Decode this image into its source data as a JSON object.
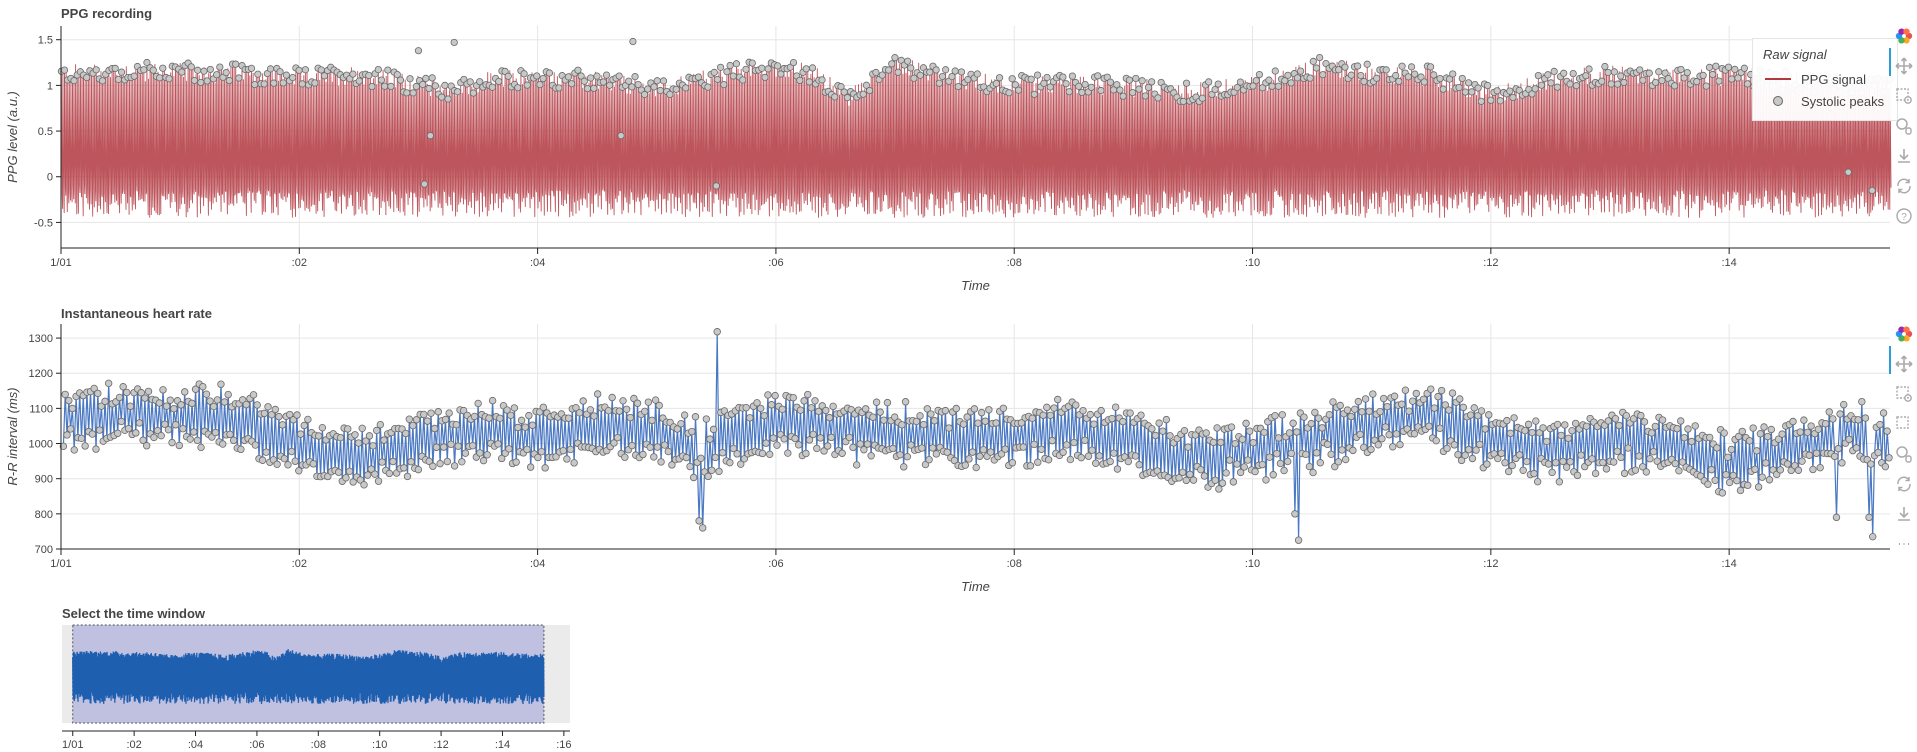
{
  "colors": {
    "ppg_line": "#b2373f",
    "peak_fill": "#c8c8c8",
    "hr_line": "#4a78c2",
    "nav_signal": "#1f5fb0",
    "nav_window": "#c0c0e0",
    "tool_active": "#2c9ed7"
  },
  "ppg_panel": {
    "title": "PPG recording",
    "legend": {
      "title": "Raw signal",
      "items": [
        {
          "label": "PPG signal",
          "kind": "line"
        },
        {
          "label": "Systolic peaks",
          "kind": "marker"
        }
      ]
    },
    "toolbar_icons": [
      "bokeh-logo-icon",
      "pan-icon",
      "box-zoom-icon",
      "wheel-zoom-icon",
      "save-icon",
      "reset-icon",
      "help-icon"
    ]
  },
  "hr_panel": {
    "title": "Instantaneous heart rate",
    "toolbar_icons": [
      "bokeh-logo-icon",
      "pan-icon",
      "box-zoom-icon",
      "box-select-icon",
      "wheel-zoom-icon",
      "reset-icon",
      "save-icon",
      "more-icon"
    ]
  },
  "nav_panel": {
    "title": "Select the time window"
  },
  "chart_data": [
    {
      "type": "line",
      "title": "PPG recording",
      "xlabel": "Time",
      "ylabel": "PPG level (a.u.)",
      "xlim": [
        0,
        15.35
      ],
      "ylim": [
        -0.78,
        1.65
      ],
      "x_ticks": [
        {
          "v": 0,
          "label": "1/01"
        },
        {
          "v": 2,
          "label": ":02"
        },
        {
          "v": 4,
          "label": ":04"
        },
        {
          "v": 6,
          "label": ":06"
        },
        {
          "v": 8,
          "label": ":08"
        },
        {
          "v": 10,
          "label": ":10"
        },
        {
          "v": 12,
          "label": ":12"
        },
        {
          "v": 14,
          "label": ":14"
        }
      ],
      "y_ticks": [
        -0.5,
        0,
        0.5,
        1,
        1.5
      ],
      "grid": true,
      "legend_position": "top-right",
      "series": [
        {
          "name": "PPG signal",
          "kind": "line"
        },
        {
          "name": "Systolic peaks",
          "kind": "scatter",
          "envelope": [
            [
              0,
              1.12
            ],
            [
              0.5,
              1.15
            ],
            [
              1,
              1.14
            ],
            [
              1.5,
              1.13
            ],
            [
              2,
              1.08
            ],
            [
              2.5,
              1.12
            ],
            [
              3,
              1.0
            ],
            [
              3.3,
              0.95
            ],
            [
              3.6,
              1.05
            ],
            [
              4,
              1.08
            ],
            [
              4.5,
              1.05
            ],
            [
              5,
              0.95
            ],
            [
              5.5,
              1.1
            ],
            [
              6,
              1.2
            ],
            [
              6.3,
              1.12
            ],
            [
              6.6,
              0.85
            ],
            [
              7,
              1.25
            ],
            [
              7.5,
              1.05
            ],
            [
              8,
              1.0
            ],
            [
              8.5,
              1.02
            ],
            [
              9,
              0.98
            ],
            [
              9.5,
              0.92
            ],
            [
              10,
              1.0
            ],
            [
              10.6,
              1.22
            ],
            [
              11,
              1.12
            ],
            [
              11.5,
              1.1
            ],
            [
              12,
              0.88
            ],
            [
              12.5,
              1.05
            ],
            [
              13,
              1.12
            ],
            [
              13.5,
              1.1
            ],
            [
              14,
              1.1
            ],
            [
              14.5,
              1.05
            ],
            [
              15,
              1.0
            ],
            [
              15.35,
              1.02
            ]
          ]
        }
      ]
    },
    {
      "type": "line",
      "title": "Instantaneous heart rate",
      "xlabel": "Time",
      "ylabel": "R-R interval (ms)",
      "xlim": [
        0,
        15.35
      ],
      "ylim": [
        700,
        1340
      ],
      "x_ticks": [
        {
          "v": 0,
          "label": "1/01"
        },
        {
          "v": 2,
          "label": ":02"
        },
        {
          "v": 4,
          "label": ":04"
        },
        {
          "v": 6,
          "label": ":06"
        },
        {
          "v": 8,
          "label": ":08"
        },
        {
          "v": 10,
          "label": ":10"
        },
        {
          "v": 12,
          "label": ":12"
        },
        {
          "v": 14,
          "label": ":14"
        }
      ],
      "y_ticks": [
        700,
        800,
        900,
        1000,
        1100,
        1200,
        1300
      ],
      "grid": true,
      "trend": [
        [
          0,
          1060
        ],
        [
          0.5,
          1085
        ],
        [
          1,
          1075
        ],
        [
          1.5,
          1070
        ],
        [
          2,
          990
        ],
        [
          2.5,
          960
        ],
        [
          3,
          1005
        ],
        [
          3.5,
          1040
        ],
        [
          4,
          1010
        ],
        [
          4.5,
          1050
        ],
        [
          5,
          1030
        ],
        [
          5.4,
          990
        ],
        [
          6,
          1060
        ],
        [
          6.5,
          1040
        ],
        [
          7,
          1030
        ],
        [
          7.5,
          1020
        ],
        [
          8,
          1020
        ],
        [
          8.5,
          1040
        ],
        [
          9,
          1000
        ],
        [
          9.5,
          960
        ],
        [
          10,
          980
        ],
        [
          10.5,
          1010
        ],
        [
          11,
          1060
        ],
        [
          11.5,
          1080
        ],
        [
          12,
          1000
        ],
        [
          12.5,
          980
        ],
        [
          13,
          1010
        ],
        [
          13.5,
          1000
        ],
        [
          14,
          940
        ],
        [
          14.5,
          980
        ],
        [
          15,
          1040
        ],
        [
          15.35,
          1000
        ]
      ],
      "outliers": [
        {
          "x": 5.38,
          "y": 760
        },
        {
          "x": 5.36,
          "y": 780
        },
        {
          "x": 5.5,
          "y": 1318
        },
        {
          "x": 10.38,
          "y": 725
        },
        {
          "x": 10.36,
          "y": 800
        },
        {
          "x": 15.2,
          "y": 735
        },
        {
          "x": 15.18,
          "y": 790
        },
        {
          "x": 14.9,
          "y": 790
        }
      ]
    },
    {
      "type": "area",
      "title": "Select the time window",
      "xlim": [
        -0.35,
        16.2
      ],
      "x_ticks": [
        {
          "v": 0,
          "label": "1/01"
        },
        {
          "v": 2,
          "label": ":02"
        },
        {
          "v": 4,
          "label": ":04"
        },
        {
          "v": 6,
          "label": ":06"
        },
        {
          "v": 8,
          "label": ":08"
        },
        {
          "v": 10,
          "label": ":10"
        },
        {
          "v": 12,
          "label": ":12"
        },
        {
          "v": 14,
          "label": ":14"
        },
        {
          "v": 16,
          "label": ":16"
        }
      ],
      "selection": [
        0,
        15.35
      ]
    }
  ]
}
